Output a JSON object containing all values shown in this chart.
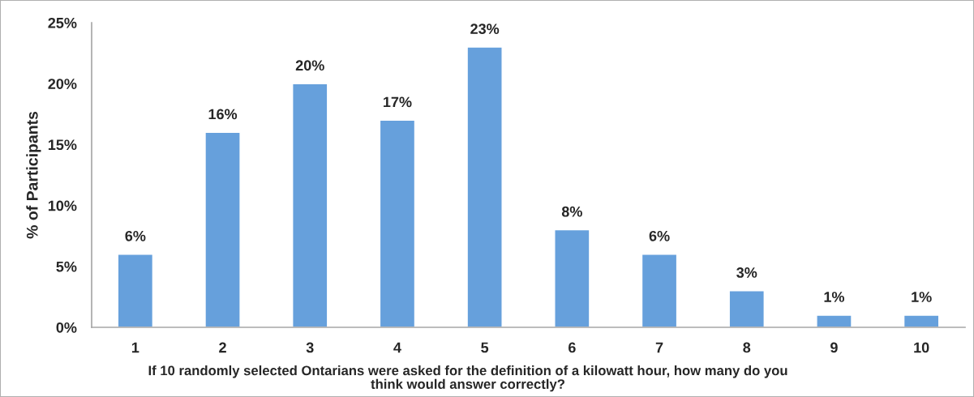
{
  "chart_data": {
    "type": "bar",
    "categories": [
      "1",
      "2",
      "3",
      "4",
      "5",
      "6",
      "7",
      "8",
      "9",
      "10"
    ],
    "values": [
      6,
      16,
      20,
      17,
      23,
      8,
      6,
      3,
      1,
      1
    ],
    "color": "#66a0dc",
    "value_labels": [
      "6%",
      "16%",
      "20%",
      "17%",
      "23%",
      "8%",
      "6%",
      "3%",
      "1%",
      "1%"
    ],
    "ylabel": "% of Participants",
    "xlabel": "If 10 randomly selected Ontarians were asked for the definition of a kilowatt hour, how many do you\nthink would answer correctly?",
    "ylim": [
      0,
      25
    ],
    "yticks": [
      {
        "value": 0,
        "label": "0%"
      },
      {
        "value": 5,
        "label": "5%"
      },
      {
        "value": 10,
        "label": "10%"
      },
      {
        "value": 15,
        "label": "15%"
      },
      {
        "value": 20,
        "label": "20%"
      },
      {
        "value": 25,
        "label": "25%"
      }
    ],
    "grid": false
  }
}
